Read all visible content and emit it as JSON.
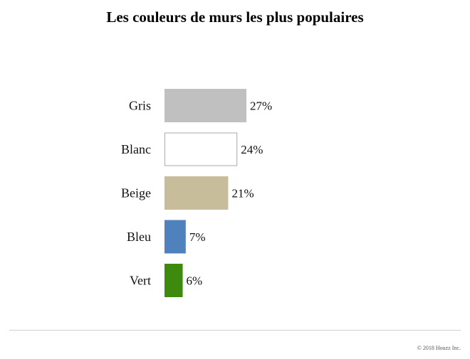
{
  "title": "Les couleurs de murs les plus populaires",
  "footer": {
    "copyright": "© 2018 Houzz Inc."
  },
  "chart_data": {
    "type": "bar",
    "orientation": "horizontal",
    "title": "Les couleurs de murs les plus populaires",
    "xlabel": "",
    "ylabel": "",
    "categories": [
      "Gris",
      "Blanc",
      "Beige",
      "Bleu",
      "Vert"
    ],
    "values": [
      27,
      24,
      21,
      7,
      6
    ],
    "value_labels": [
      "27%",
      "24%",
      "21%",
      "7%",
      "6%"
    ],
    "unit": "%",
    "colors": [
      "#c0c0c0",
      "#ffffff",
      "#c8bd9a",
      "#4f81bd",
      "#3e8a0e"
    ],
    "bar_outline": "#aaaaaa",
    "grid": false,
    "legend": "none"
  }
}
